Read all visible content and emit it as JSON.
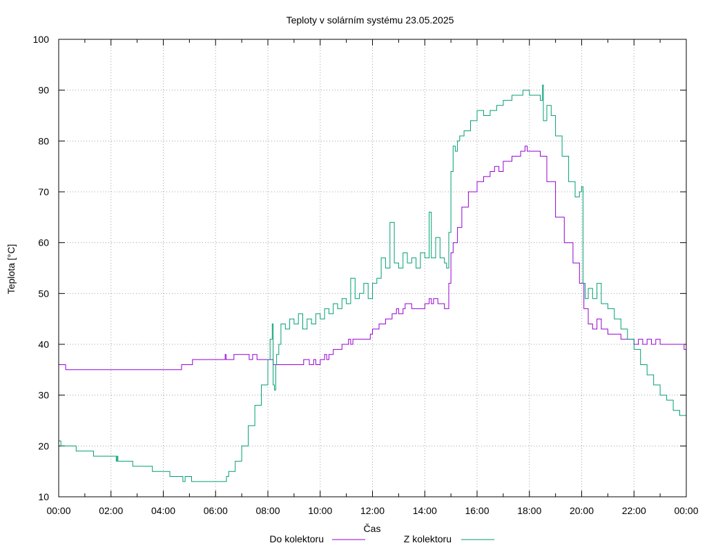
{
  "chart_data": {
    "type": "line",
    "title": "Teploty v solárním systému 23.05.2025",
    "xlabel": "Čas",
    "ylabel": "Teplota [°C]",
    "ylim": [
      10,
      100
    ],
    "xlim": [
      "00:00",
      "24:00"
    ],
    "x_ticks": [
      "00:00",
      "02:00",
      "04:00",
      "06:00",
      "08:00",
      "10:00",
      "12:00",
      "14:00",
      "16:00",
      "18:00",
      "20:00",
      "22:00",
      "00:00"
    ],
    "y_ticks": [
      "10",
      "20",
      "30",
      "40",
      "50",
      "60",
      "70",
      "80",
      "90",
      "100"
    ],
    "grid": true,
    "legend_position": "bottom",
    "series": [
      {
        "name": "Do kolektoru",
        "color": "#9400d3",
        "points": [
          [
            "00:00",
            36
          ],
          [
            "00:15",
            36
          ],
          [
            "00:16",
            35
          ],
          [
            "01:00",
            35
          ],
          [
            "02:00",
            35
          ],
          [
            "03:00",
            35
          ],
          [
            "04:00",
            35
          ],
          [
            "04:40",
            35
          ],
          [
            "04:42",
            36
          ],
          [
            "05:05",
            36
          ],
          [
            "05:07",
            37
          ],
          [
            "06:00",
            37
          ],
          [
            "06:20",
            37
          ],
          [
            "06:22",
            38
          ],
          [
            "06:24",
            37
          ],
          [
            "06:40",
            37
          ],
          [
            "06:42",
            38
          ],
          [
            "07:00",
            38
          ],
          [
            "07:15",
            38
          ],
          [
            "07:17",
            37
          ],
          [
            "07:25",
            38
          ],
          [
            "07:35",
            37
          ],
          [
            "07:45",
            37
          ],
          [
            "07:55",
            37
          ],
          [
            "08:10",
            37
          ],
          [
            "08:12",
            36
          ],
          [
            "08:40",
            36
          ],
          [
            "09:00",
            36
          ],
          [
            "09:20",
            36
          ],
          [
            "09:22",
            37
          ],
          [
            "09:35",
            36
          ],
          [
            "09:45",
            37
          ],
          [
            "09:50",
            36
          ],
          [
            "10:00",
            37
          ],
          [
            "10:10",
            38
          ],
          [
            "10:15",
            37
          ],
          [
            "10:20",
            38
          ],
          [
            "10:30",
            39
          ],
          [
            "10:50",
            40
          ],
          [
            "11:00",
            40
          ],
          [
            "11:05",
            41
          ],
          [
            "11:10",
            40
          ],
          [
            "11:15",
            41
          ],
          [
            "11:30",
            41
          ],
          [
            "11:55",
            42
          ],
          [
            "12:00",
            43
          ],
          [
            "12:15",
            44
          ],
          [
            "12:30",
            45
          ],
          [
            "12:45",
            46
          ],
          [
            "12:55",
            47
          ],
          [
            "13:00",
            46
          ],
          [
            "13:10",
            47
          ],
          [
            "13:15",
            48
          ],
          [
            "13:30",
            47
          ],
          [
            "13:50",
            47
          ],
          [
            "14:00",
            48
          ],
          [
            "14:10",
            49
          ],
          [
            "14:15",
            48
          ],
          [
            "14:20",
            49
          ],
          [
            "14:30",
            48
          ],
          [
            "14:40",
            48
          ],
          [
            "14:45",
            47
          ],
          [
            "14:53",
            47
          ],
          [
            "14:55",
            52
          ],
          [
            "15:00",
            58
          ],
          [
            "15:05",
            60
          ],
          [
            "15:15",
            63
          ],
          [
            "15:25",
            67
          ],
          [
            "15:40",
            70
          ],
          [
            "16:00",
            72
          ],
          [
            "16:15",
            73
          ],
          [
            "16:30",
            74
          ],
          [
            "16:40",
            75
          ],
          [
            "16:50",
            74
          ],
          [
            "17:00",
            76
          ],
          [
            "17:20",
            77
          ],
          [
            "17:40",
            78
          ],
          [
            "17:50",
            79
          ],
          [
            "17:55",
            78
          ],
          [
            "18:15",
            78
          ],
          [
            "18:25",
            77
          ],
          [
            "18:40",
            72
          ],
          [
            "19:00",
            65
          ],
          [
            "19:20",
            60
          ],
          [
            "19:40",
            56
          ],
          [
            "19:55",
            52
          ],
          [
            "20:05",
            47
          ],
          [
            "20:15",
            44
          ],
          [
            "20:25",
            43
          ],
          [
            "20:35",
            45
          ],
          [
            "20:45",
            43
          ],
          [
            "21:00",
            42
          ],
          [
            "21:30",
            41
          ],
          [
            "22:00",
            40
          ],
          [
            "22:10",
            41
          ],
          [
            "22:20",
            40
          ],
          [
            "22:30",
            41
          ],
          [
            "22:40",
            40
          ],
          [
            "22:50",
            41
          ],
          [
            "23:00",
            40
          ],
          [
            "23:30",
            40
          ],
          [
            "23:55",
            39
          ],
          [
            "24:00",
            40
          ]
        ]
      },
      {
        "name": "Z kolektoru",
        "color": "#009e73",
        "points": [
          [
            "00:00",
            21
          ],
          [
            "00:05",
            20
          ],
          [
            "00:35",
            20
          ],
          [
            "00:40",
            19
          ],
          [
            "01:15",
            19
          ],
          [
            "01:20",
            18
          ],
          [
            "02:10",
            18
          ],
          [
            "02:12",
            17
          ],
          [
            "02:14",
            18
          ],
          [
            "02:16",
            17
          ],
          [
            "02:30",
            17
          ],
          [
            "02:45",
            17
          ],
          [
            "02:50",
            16
          ],
          [
            "03:30",
            16
          ],
          [
            "03:35",
            15
          ],
          [
            "04:10",
            15
          ],
          [
            "04:15",
            14
          ],
          [
            "04:40",
            14
          ],
          [
            "04:45",
            13
          ],
          [
            "04:50",
            14
          ],
          [
            "05:00",
            14
          ],
          [
            "05:05",
            13
          ],
          [
            "06:00",
            13
          ],
          [
            "06:20",
            13
          ],
          [
            "06:25",
            14
          ],
          [
            "06:30",
            15
          ],
          [
            "06:45",
            17
          ],
          [
            "07:00",
            20
          ],
          [
            "07:15",
            24
          ],
          [
            "07:30",
            28
          ],
          [
            "07:45",
            32
          ],
          [
            "08:00",
            37
          ],
          [
            "08:05",
            41
          ],
          [
            "08:10",
            44
          ],
          [
            "08:12",
            32
          ],
          [
            "08:15",
            31
          ],
          [
            "08:18",
            36
          ],
          [
            "08:20",
            38
          ],
          [
            "08:25",
            40
          ],
          [
            "08:30",
            44
          ],
          [
            "08:40",
            43
          ],
          [
            "08:50",
            45
          ],
          [
            "09:00",
            44
          ],
          [
            "09:10",
            46
          ],
          [
            "09:20",
            43
          ],
          [
            "09:30",
            45
          ],
          [
            "09:40",
            44
          ],
          [
            "09:50",
            46
          ],
          [
            "10:00",
            45
          ],
          [
            "10:10",
            47
          ],
          [
            "10:20",
            46
          ],
          [
            "10:30",
            48
          ],
          [
            "10:40",
            47
          ],
          [
            "10:50",
            49
          ],
          [
            "11:00",
            48
          ],
          [
            "11:10",
            53
          ],
          [
            "11:20",
            49
          ],
          [
            "11:30",
            50
          ],
          [
            "11:40",
            52
          ],
          [
            "11:50",
            49
          ],
          [
            "12:00",
            52
          ],
          [
            "12:10",
            53
          ],
          [
            "12:20",
            57
          ],
          [
            "12:30",
            55
          ],
          [
            "12:40",
            64
          ],
          [
            "12:50",
            56
          ],
          [
            "13:00",
            55
          ],
          [
            "13:10",
            58
          ],
          [
            "13:20",
            56
          ],
          [
            "13:30",
            57
          ],
          [
            "13:40",
            55
          ],
          [
            "13:50",
            58
          ],
          [
            "14:00",
            57
          ],
          [
            "14:10",
            66
          ],
          [
            "14:15",
            57
          ],
          [
            "14:25",
            61
          ],
          [
            "14:35",
            57
          ],
          [
            "14:45",
            56
          ],
          [
            "14:50",
            55
          ],
          [
            "14:55",
            62
          ],
          [
            "15:00",
            74
          ],
          [
            "15:05",
            79
          ],
          [
            "15:10",
            78
          ],
          [
            "15:15",
            80
          ],
          [
            "15:20",
            81
          ],
          [
            "15:30",
            82
          ],
          [
            "15:45",
            84
          ],
          [
            "16:00",
            86
          ],
          [
            "16:15",
            85
          ],
          [
            "16:30",
            86
          ],
          [
            "16:45",
            87
          ],
          [
            "17:00",
            88
          ],
          [
            "17:20",
            89
          ],
          [
            "17:40",
            89
          ],
          [
            "17:45",
            90
          ],
          [
            "18:00",
            89
          ],
          [
            "18:15",
            89
          ],
          [
            "18:25",
            88
          ],
          [
            "18:30",
            91
          ],
          [
            "18:32",
            84
          ],
          [
            "18:40",
            87
          ],
          [
            "18:50",
            85
          ],
          [
            "19:00",
            81
          ],
          [
            "19:15",
            77
          ],
          [
            "19:30",
            72
          ],
          [
            "19:45",
            69
          ],
          [
            "19:55",
            70
          ],
          [
            "20:00",
            71
          ],
          [
            "20:03",
            52
          ],
          [
            "20:08",
            49
          ],
          [
            "20:15",
            51
          ],
          [
            "20:25",
            49
          ],
          [
            "20:35",
            52
          ],
          [
            "20:45",
            48
          ],
          [
            "21:00",
            47
          ],
          [
            "21:15",
            45
          ],
          [
            "21:30",
            43
          ],
          [
            "21:45",
            41
          ],
          [
            "22:00",
            39
          ],
          [
            "22:15",
            36
          ],
          [
            "22:30",
            34
          ],
          [
            "22:45",
            32
          ],
          [
            "23:00",
            30
          ],
          [
            "23:15",
            29
          ],
          [
            "23:30",
            27
          ],
          [
            "23:45",
            26
          ],
          [
            "24:00",
            25
          ]
        ]
      }
    ]
  }
}
